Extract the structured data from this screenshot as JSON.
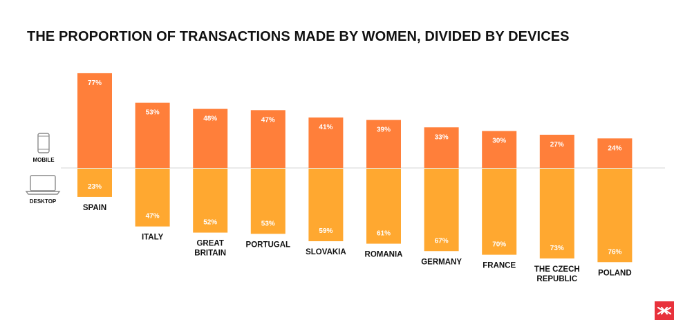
{
  "title": "THE PROPORTION OF TRANSACTIONS MADE BY WOMEN, DIVIDED BY DEVICES",
  "legend": {
    "mobile_label": "MOBILE",
    "desktop_label": "DESKTOP",
    "mobile_icon": "smartphone-icon",
    "desktop_icon": "laptop-icon"
  },
  "logo_icon": "brand-logo-icon",
  "colors": {
    "mobile": "#FF7F3A",
    "desktop": "#FFA830",
    "baseline": "#E3E3E3",
    "logo": "#E8323C"
  },
  "chart_data": {
    "type": "bar",
    "stacked": "diverging",
    "title": "THE PROPORTION OF TRANSACTIONS MADE BY WOMEN, DIVIDED BY DEVICES",
    "categories": [
      [
        "SPAIN"
      ],
      [
        "ITALY"
      ],
      [
        "GREAT",
        "BRITAIN"
      ],
      [
        "PORTUGAL"
      ],
      [
        "SLOVAKIA"
      ],
      [
        "ROMANIA"
      ],
      [
        "GERMANY"
      ],
      [
        "FRANCE"
      ],
      [
        "THE CZECH",
        "REPUBLIC"
      ],
      [
        "POLAND"
      ]
    ],
    "series": [
      {
        "name": "MOBILE",
        "direction": "up",
        "values": [
          77,
          53,
          48,
          47,
          41,
          39,
          33,
          30,
          27,
          24
        ],
        "labels": [
          "77%",
          "53%",
          "48%",
          "47%",
          "41%",
          "39%",
          "33%",
          "30%",
          "27%",
          "24%"
        ]
      },
      {
        "name": "DESKTOP",
        "direction": "down",
        "values": [
          23,
          47,
          52,
          53,
          59,
          61,
          67,
          70,
          73,
          76
        ],
        "labels": [
          "23%",
          "47%",
          "52%",
          "53%",
          "59%",
          "61%",
          "67%",
          "70%",
          "73%",
          "76%"
        ]
      }
    ],
    "unit": "%",
    "xlabel": "",
    "ylabel": "",
    "grid": false,
    "legend_position": "left"
  }
}
